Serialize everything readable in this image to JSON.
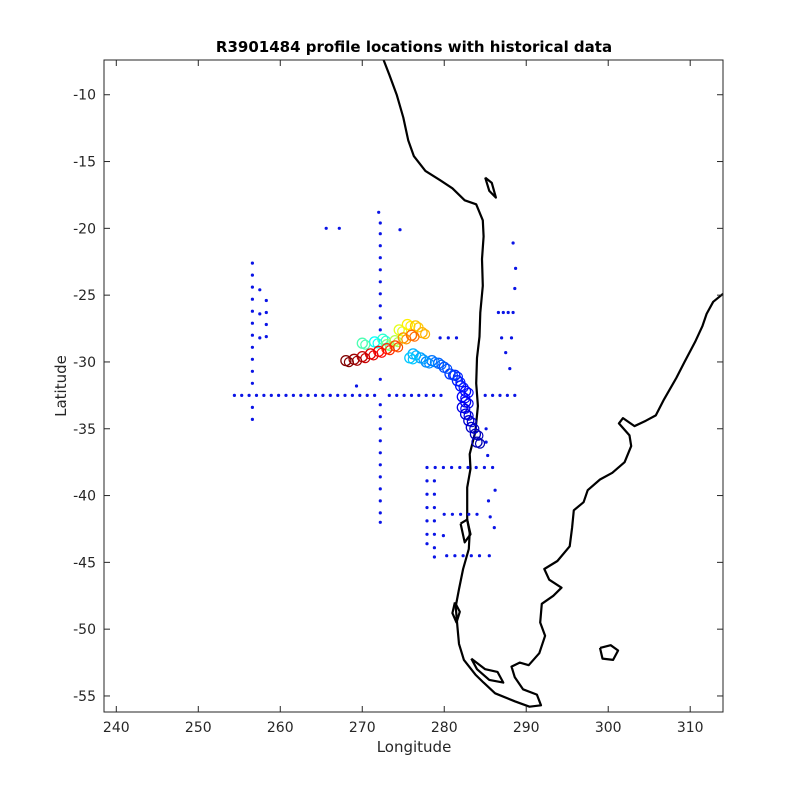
{
  "chart_data": {
    "type": "scatter",
    "title": "R3901484 profile locations with historical data",
    "xlabel": "Longitude",
    "ylabel": "Latitude",
    "xlim": [
      238.5,
      314
    ],
    "ylim": [
      -56.2,
      -7.4
    ],
    "xticks": [
      240,
      250,
      260,
      270,
      280,
      290,
      300,
      310
    ],
    "yticks": [
      -10,
      -15,
      -20,
      -25,
      -30,
      -35,
      -40,
      -45,
      -50,
      -55
    ],
    "grid": false,
    "legend": "none",
    "colors": {
      "historical": "#0a14e6",
      "coast": "#000000",
      "frame": "#262626"
    },
    "series": [
      {
        "marker": "dot",
        "points": [
          [
            265.6,
            -20.0
          ],
          [
            267.2,
            -20.0
          ],
          [
            274.6,
            -20.1
          ],
          [
            256.6,
            -22.6
          ],
          [
            256.6,
            -23.5
          ],
          [
            256.6,
            -24.4
          ],
          [
            256.6,
            -25.3
          ],
          [
            256.6,
            -26.2
          ],
          [
            256.6,
            -27.1
          ],
          [
            256.6,
            -28.0
          ],
          [
            256.6,
            -28.9
          ],
          [
            256.6,
            -29.8
          ],
          [
            256.6,
            -30.7
          ],
          [
            256.6,
            -31.6
          ],
          [
            256.6,
            -33.4
          ],
          [
            256.6,
            -34.3
          ],
          [
            257.5,
            -24.6
          ],
          [
            257.5,
            -26.4
          ],
          [
            257.5,
            -28.2
          ],
          [
            258.3,
            -25.4
          ],
          [
            258.3,
            -26.3
          ],
          [
            258.3,
            -27.2
          ],
          [
            258.3,
            -28.1
          ],
          [
            272.0,
            -18.8
          ],
          [
            272.2,
            -19.6
          ],
          [
            272.2,
            -20.4
          ],
          [
            272.2,
            -21.3
          ],
          [
            272.2,
            -22.2
          ],
          [
            272.2,
            -23.1
          ],
          [
            272.2,
            -24.0
          ],
          [
            272.2,
            -24.9
          ],
          [
            272.2,
            -25.8
          ],
          [
            272.2,
            -26.7
          ],
          [
            272.2,
            -27.6
          ],
          [
            272.2,
            -31.3
          ],
          [
            272.2,
            -33.2
          ],
          [
            272.2,
            -34.1
          ],
          [
            272.2,
            -35.0
          ],
          [
            272.2,
            -35.9
          ],
          [
            272.2,
            -36.8
          ],
          [
            272.2,
            -37.7
          ],
          [
            272.2,
            -38.6
          ],
          [
            272.2,
            -39.5
          ],
          [
            272.2,
            -40.4
          ],
          [
            272.2,
            -41.3
          ],
          [
            272.2,
            -42.0
          ],
          [
            254.4,
            -32.5
          ],
          [
            255.3,
            -32.5
          ],
          [
            256.2,
            -32.5
          ],
          [
            257.1,
            -32.5
          ],
          [
            258.0,
            -32.5
          ],
          [
            258.9,
            -32.5
          ],
          [
            259.8,
            -32.5
          ],
          [
            260.7,
            -32.5
          ],
          [
            261.6,
            -32.5
          ],
          [
            262.5,
            -32.5
          ],
          [
            263.4,
            -32.5
          ],
          [
            264.3,
            -32.5
          ],
          [
            265.2,
            -32.5
          ],
          [
            266.1,
            -32.5
          ],
          [
            267.0,
            -32.5
          ],
          [
            267.9,
            -32.5
          ],
          [
            268.8,
            -32.5
          ],
          [
            269.7,
            -32.5
          ],
          [
            270.6,
            -32.5
          ],
          [
            271.5,
            -32.5
          ],
          [
            273.3,
            -32.5
          ],
          [
            274.2,
            -32.5
          ],
          [
            275.1,
            -32.5
          ],
          [
            276.0,
            -32.5
          ],
          [
            276.9,
            -32.5
          ],
          [
            277.8,
            -32.5
          ],
          [
            278.7,
            -32.5
          ],
          [
            279.6,
            -32.5
          ],
          [
            285.0,
            -32.5
          ],
          [
            285.9,
            -32.5
          ],
          [
            286.8,
            -32.5
          ],
          [
            287.7,
            -32.5
          ],
          [
            288.6,
            -32.5
          ],
          [
            279.5,
            -28.2
          ],
          [
            280.5,
            -28.2
          ],
          [
            281.5,
            -28.2
          ],
          [
            287.0,
            -28.2
          ],
          [
            288.2,
            -28.2
          ],
          [
            286.6,
            -26.3
          ],
          [
            287.2,
            -26.3
          ],
          [
            287.8,
            -26.3
          ],
          [
            288.4,
            -26.3
          ],
          [
            288.6,
            -24.5
          ],
          [
            288.7,
            -23.0
          ],
          [
            288.4,
            -21.1
          ],
          [
            287.5,
            -29.3
          ],
          [
            288.0,
            -30.5
          ],
          [
            269.3,
            -31.8
          ],
          [
            277.9,
            -37.9
          ],
          [
            278.9,
            -37.9
          ],
          [
            279.9,
            -37.9
          ],
          [
            280.9,
            -37.9
          ],
          [
            281.9,
            -37.9
          ],
          [
            282.9,
            -37.9
          ],
          [
            283.9,
            -37.9
          ],
          [
            284.9,
            -37.9
          ],
          [
            285.9,
            -37.9
          ],
          [
            277.9,
            -38.9
          ],
          [
            277.9,
            -39.9
          ],
          [
            277.9,
            -40.9
          ],
          [
            277.9,
            -41.9
          ],
          [
            277.9,
            -42.9
          ],
          [
            277.9,
            -43.6
          ],
          [
            278.8,
            -38.9
          ],
          [
            278.8,
            -39.9
          ],
          [
            278.8,
            -40.9
          ],
          [
            278.8,
            -41.9
          ],
          [
            278.8,
            -42.9
          ],
          [
            278.8,
            -43.9
          ],
          [
            278.8,
            -44.6
          ],
          [
            280.0,
            -41.4
          ],
          [
            281.0,
            -41.4
          ],
          [
            282.0,
            -41.4
          ],
          [
            283.0,
            -41.4
          ],
          [
            284.0,
            -41.4
          ],
          [
            280.3,
            -44.5
          ],
          [
            281.3,
            -44.5
          ],
          [
            282.3,
            -44.5
          ],
          [
            283.3,
            -44.5
          ],
          [
            284.3,
            -44.5
          ],
          [
            285.5,
            -44.5
          ],
          [
            279.9,
            -43.0
          ],
          [
            285.1,
            -35.0
          ],
          [
            285.1,
            -36.0
          ],
          [
            285.3,
            -37.0
          ],
          [
            286.2,
            -39.6
          ],
          [
            285.4,
            -40.4
          ],
          [
            285.6,
            -41.6
          ],
          [
            286.1,
            -42.4
          ]
        ]
      },
      {
        "marker": "circle",
        "note_colorscale": "jet",
        "points": [
          [
            284.0,
            -36.0,
            0.05
          ],
          [
            283.8,
            -35.4,
            0.06
          ],
          [
            283.3,
            -34.9,
            0.07
          ],
          [
            283.0,
            -34.4,
            0.08
          ],
          [
            282.6,
            -33.9,
            0.09
          ],
          [
            282.2,
            -33.4,
            0.1
          ],
          [
            282.6,
            -33.0,
            0.11
          ],
          [
            282.2,
            -32.6,
            0.12
          ],
          [
            282.6,
            -32.2,
            0.13
          ],
          [
            282.0,
            -31.8,
            0.14
          ],
          [
            281.6,
            -31.4,
            0.15
          ],
          [
            281.3,
            -31.0,
            0.16
          ],
          [
            280.7,
            -30.9,
            0.18
          ],
          [
            280.0,
            -30.4,
            0.2
          ],
          [
            279.3,
            -30.1,
            0.22
          ],
          [
            278.5,
            -29.9,
            0.24
          ],
          [
            277.8,
            -30.0,
            0.26
          ],
          [
            277.1,
            -29.7,
            0.28
          ],
          [
            276.2,
            -29.4,
            0.3
          ],
          [
            275.8,
            -29.7,
            0.32
          ],
          [
            271.5,
            -28.5,
            0.38
          ],
          [
            272.5,
            -28.3,
            0.42
          ],
          [
            270.0,
            -28.6,
            0.45
          ],
          [
            273.0,
            -28.7,
            0.5
          ],
          [
            274.0,
            -28.4,
            0.55
          ],
          [
            274.5,
            -27.6,
            0.6
          ],
          [
            275.5,
            -27.2,
            0.64
          ],
          [
            276.5,
            -27.3,
            0.68
          ],
          [
            277.3,
            -27.8,
            0.7
          ],
          [
            275.0,
            -28.2,
            0.73
          ],
          [
            276.0,
            -28.0,
            0.77
          ],
          [
            274.0,
            -28.8,
            0.8
          ],
          [
            273.0,
            -29.0,
            0.83
          ],
          [
            272.0,
            -29.2,
            0.87
          ],
          [
            271.0,
            -29.4,
            0.9
          ],
          [
            270.0,
            -29.6,
            0.93
          ],
          [
            269.0,
            -29.8,
            0.97
          ],
          [
            268.0,
            -29.9,
            1.0
          ]
        ]
      }
    ],
    "coastline": [
      [
        [
          272.6,
          -7.4
        ],
        [
          273.3,
          -8.5
        ],
        [
          274.2,
          -10.0
        ],
        [
          275.0,
          -11.7
        ],
        [
          275.6,
          -13.4
        ],
        [
          276.3,
          -14.6
        ],
        [
          277.7,
          -15.7
        ],
        [
          279.5,
          -16.4
        ],
        [
          281.0,
          -17.0
        ],
        [
          282.5,
          -17.9
        ],
        [
          283.9,
          -18.2
        ],
        [
          284.7,
          -19.4
        ],
        [
          284.8,
          -20.6
        ],
        [
          284.6,
          -22.3
        ],
        [
          284.7,
          -24.3
        ],
        [
          284.4,
          -26.3
        ],
        [
          284.3,
          -28.1
        ],
        [
          284.0,
          -29.7
        ],
        [
          283.9,
          -31.6
        ],
        [
          284.1,
          -33.3
        ],
        [
          283.8,
          -35.2
        ],
        [
          283.1,
          -36.9
        ],
        [
          283.2,
          -38.0
        ],
        [
          282.8,
          -39.4
        ],
        [
          282.8,
          -40.6
        ],
        [
          282.8,
          -41.8
        ],
        [
          283.1,
          -42.8
        ],
        [
          283.0,
          -44.0
        ],
        [
          282.3,
          -45.5
        ],
        [
          281.8,
          -47.0
        ],
        [
          281.4,
          -48.3
        ],
        [
          281.6,
          -49.8
        ],
        [
          281.8,
          -51.1
        ],
        [
          282.4,
          -52.3
        ],
        [
          283.8,
          -53.4
        ],
        [
          284.8,
          -54.0
        ],
        [
          286.2,
          -54.8
        ],
        [
          288.6,
          -55.4
        ],
        [
          290.4,
          -55.8
        ],
        [
          291.8,
          -55.7
        ],
        [
          291.3,
          -54.9
        ],
        [
          289.6,
          -54.5
        ],
        [
          288.6,
          -53.6
        ],
        [
          288.2,
          -52.8
        ],
        [
          289.2,
          -52.5
        ],
        [
          290.3,
          -52.7
        ],
        [
          291.6,
          -51.8
        ],
        [
          292.3,
          -50.5
        ],
        [
          291.7,
          -49.5
        ],
        [
          291.9,
          -48.1
        ],
        [
          293.3,
          -47.5
        ],
        [
          294.3,
          -46.9
        ],
        [
          292.8,
          -46.3
        ],
        [
          292.2,
          -45.5
        ],
        [
          293.8,
          -44.9
        ],
        [
          295.3,
          -43.8
        ],
        [
          295.6,
          -42.4
        ],
        [
          295.8,
          -41.1
        ],
        [
          297.0,
          -40.5
        ],
        [
          297.5,
          -39.6
        ],
        [
          299.0,
          -38.8
        ],
        [
          300.5,
          -38.3
        ],
        [
          302.0,
          -37.5
        ],
        [
          302.8,
          -36.3
        ],
        [
          302.6,
          -35.5
        ],
        [
          301.3,
          -34.6
        ],
        [
          301.8,
          -34.2
        ],
        [
          303.2,
          -34.8
        ],
        [
          304.6,
          -34.4
        ],
        [
          305.8,
          -34.0
        ],
        [
          306.8,
          -32.8
        ],
        [
          308.3,
          -31.2
        ],
        [
          309.3,
          -30.0
        ],
        [
          310.6,
          -28.5
        ],
        [
          311.5,
          -27.3
        ],
        [
          312.0,
          -26.4
        ],
        [
          312.8,
          -25.5
        ],
        [
          314.0,
          -24.9
        ]
      ],
      [
        [
          285.0,
          -16.2
        ],
        [
          285.8,
          -16.6
        ],
        [
          286.3,
          -17.7
        ],
        [
          285.5,
          -17.2
        ],
        [
          285.0,
          -16.2
        ]
      ],
      [
        [
          299.0,
          -51.4
        ],
        [
          300.3,
          -51.2
        ],
        [
          301.2,
          -51.6
        ],
        [
          300.6,
          -52.3
        ],
        [
          299.3,
          -52.2
        ],
        [
          299.0,
          -51.4
        ]
      ],
      [
        [
          283.3,
          -52.2
        ],
        [
          285.0,
          -53.0
        ],
        [
          286.5,
          -53.2
        ],
        [
          287.2,
          -54.0
        ],
        [
          285.5,
          -53.8
        ],
        [
          284.0,
          -53.0
        ],
        [
          283.3,
          -52.2
        ]
      ],
      [
        [
          282.0,
          -42.1
        ],
        [
          282.8,
          -41.8
        ],
        [
          283.2,
          -42.9
        ],
        [
          282.5,
          -43.5
        ],
        [
          282.0,
          -42.1
        ]
      ],
      [
        [
          281.3,
          -48.0
        ],
        [
          281.9,
          -48.7
        ],
        [
          281.5,
          -49.5
        ],
        [
          281.0,
          -48.8
        ],
        [
          281.3,
          -48.0
        ]
      ]
    ]
  }
}
